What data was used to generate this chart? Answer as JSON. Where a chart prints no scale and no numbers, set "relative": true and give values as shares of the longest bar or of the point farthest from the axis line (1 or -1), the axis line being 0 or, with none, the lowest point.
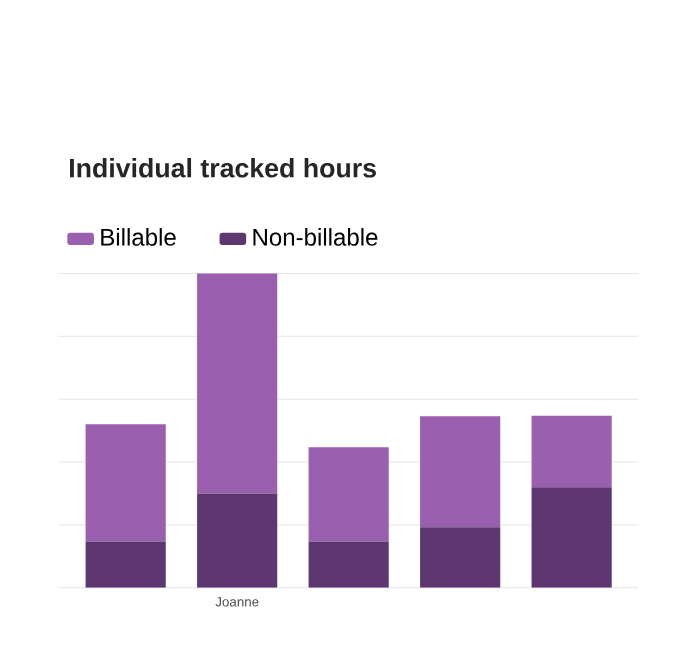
{
  "chart_data": {
    "type": "bar",
    "title": "Individual tracked hours",
    "stacked": true,
    "relative": true,
    "grid": "y",
    "legend": "top left",
    "categories": [
      null,
      "Joanne",
      null,
      null,
      null
    ],
    "series": [
      {
        "name": "Non-billable",
        "color": "#5e3770",
        "values": [
          0.147,
          0.3,
          0.147,
          0.193,
          0.32
        ]
      },
      {
        "name": "Billable",
        "color": "#9b5fb0",
        "values": [
          0.373,
          0.7,
          0.3,
          0.353,
          0.227
        ]
      }
    ]
  }
}
